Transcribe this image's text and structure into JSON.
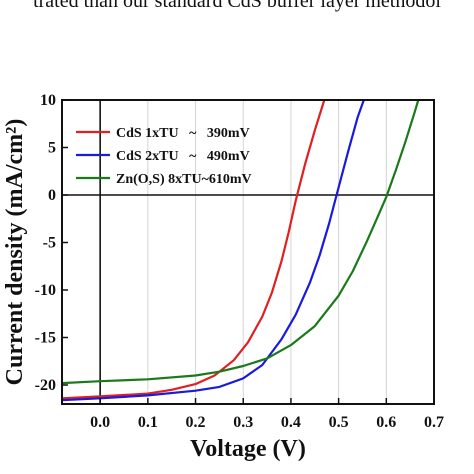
{
  "page_text": "trated than our standard CdS buffer layer methodol",
  "chart_data": {
    "type": "line",
    "xlabel": "Voltage (V)",
    "ylabel": "Current density (mA/cm²)",
    "xlim": [
      -0.08,
      0.7
    ],
    "ylim": [
      -22,
      10
    ],
    "xticks": [
      0.0,
      0.1,
      0.2,
      0.3,
      0.4,
      0.5,
      0.6,
      0.7
    ],
    "xtick_labels": [
      "0.0",
      "0.1",
      "0.2",
      "0.3",
      "0.4",
      "0.5",
      "0.6",
      "0.7"
    ],
    "yticks": [
      -20,
      -15,
      -10,
      -5,
      0,
      5,
      10
    ],
    "ytick_labels": [
      "-20",
      "-15",
      "-10",
      "-5",
      "0",
      "5",
      "10"
    ],
    "grid": "vertical",
    "legend_position": "top-left",
    "series": [
      {
        "name": "CdS 1xTU   ~   390mV",
        "color": "#e02020",
        "x": [
          -0.08,
          0.0,
          0.1,
          0.15,
          0.2,
          0.24,
          0.28,
          0.31,
          0.34,
          0.36,
          0.38,
          0.395,
          0.41,
          0.43,
          0.45,
          0.47
        ],
        "y": [
          -21.4,
          -21.2,
          -20.9,
          -20.5,
          -19.9,
          -19.0,
          -17.4,
          -15.5,
          -12.8,
          -10.3,
          -7.0,
          -4.0,
          -0.6,
          3.3,
          6.8,
          10.0
        ]
      },
      {
        "name": "CdS 2xTU   ~   490mV",
        "color": "#1a1adc",
        "x": [
          -0.08,
          0.0,
          0.1,
          0.2,
          0.25,
          0.3,
          0.34,
          0.38,
          0.41,
          0.44,
          0.46,
          0.48,
          0.5,
          0.52,
          0.54,
          0.56
        ],
        "y": [
          -21.6,
          -21.4,
          -21.1,
          -20.6,
          -20.2,
          -19.3,
          -17.9,
          -15.2,
          -12.6,
          -9.2,
          -6.4,
          -3.0,
          0.8,
          4.6,
          8.2,
          11.0
        ]
      },
      {
        "name": "Zn(O,S) 8xTU~610mV",
        "color": "#1a7a1a",
        "x": [
          -0.08,
          0.0,
          0.1,
          0.2,
          0.25,
          0.3,
          0.35,
          0.4,
          0.45,
          0.5,
          0.53,
          0.56,
          0.58,
          0.6,
          0.62,
          0.64,
          0.66,
          0.67
        ],
        "y": [
          -19.8,
          -19.6,
          -19.4,
          -19.0,
          -18.6,
          -18.0,
          -17.2,
          -15.8,
          -13.8,
          -10.6,
          -8.0,
          -4.8,
          -2.5,
          -0.2,
          2.6,
          5.6,
          8.8,
          10.5
        ]
      }
    ]
  }
}
